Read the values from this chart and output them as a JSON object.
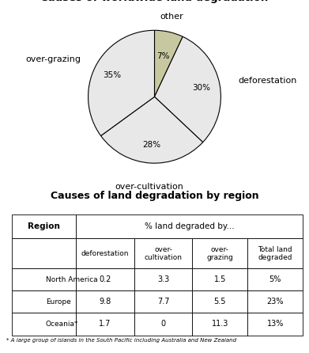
{
  "pie_title": "Causes of worldwide land degradation",
  "pie_values": [
    7,
    30,
    28,
    35
  ],
  "pie_colors": [
    "#c8c8a0",
    "#e8e8e8",
    "#e8e8e8",
    "#e8e8e8"
  ],
  "pie_pct_labels": [
    "7%",
    "30%",
    "28%",
    "35%"
  ],
  "pie_outer_labels": [
    "other",
    "deforestation",
    "over-cultivation",
    "over-grazing"
  ],
  "table_title": "Causes of land degradation by region",
  "col_header1_left": "Region",
  "col_header1_right": "% land degraded by...",
  "col_headers": [
    "deforestation",
    "over-\ncultivation",
    "over-\ngrazing",
    "Total land\ndegraded"
  ],
  "row_labels": [
    "North America",
    "Europe",
    "Oceania*"
  ],
  "table_data": [
    [
      "0.2",
      "3.3",
      "1.5",
      "5%"
    ],
    [
      "9.8",
      "7.7",
      "5.5",
      "23%"
    ],
    [
      "1.7",
      "0",
      "11.3",
      "13%"
    ]
  ],
  "footnote": "* A large group of islands in the South Pacific including Australia and New Zealand",
  "bg_color": "#ffffff"
}
